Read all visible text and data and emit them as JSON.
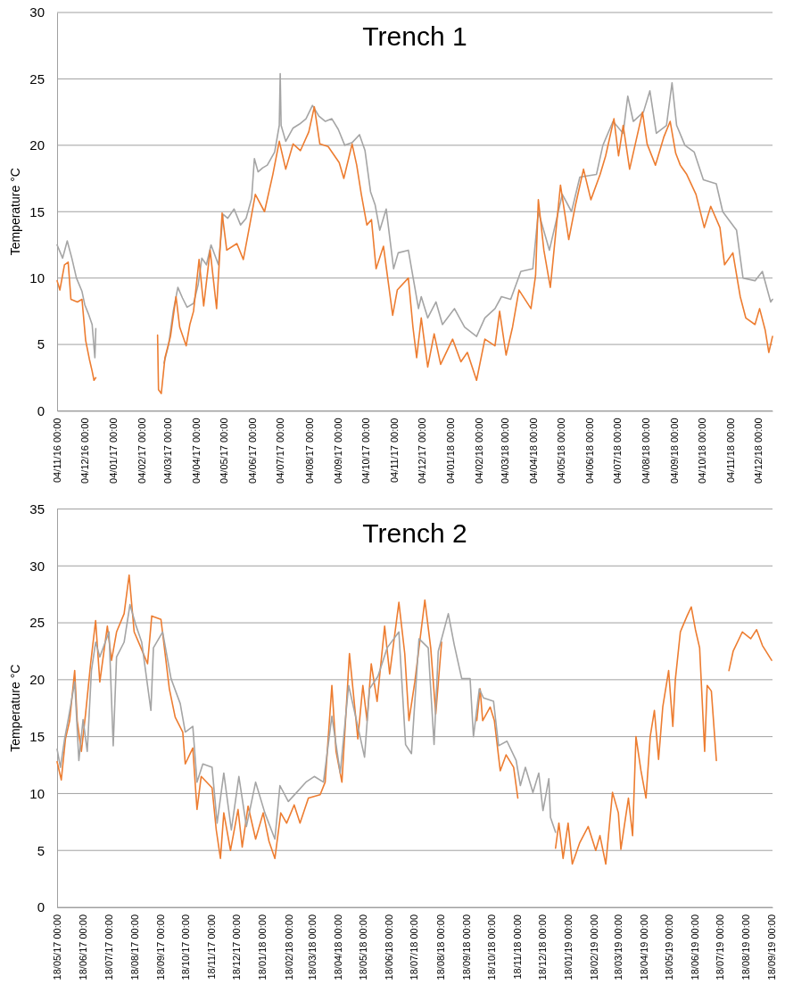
{
  "chart_data": [
    {
      "type": "line",
      "title": "Trench 1",
      "ylabel": "Temperature °C",
      "grid": "y",
      "xlim": [
        "2016-11-04",
        "2018-12-20"
      ],
      "ylim": [
        0,
        30
      ],
      "yticks": [
        0,
        5,
        10,
        15,
        20,
        25,
        30
      ],
      "xticks": [
        {
          "value": "2016-11-04",
          "label": "04/11/16 00:00"
        },
        {
          "value": "2016-12-04",
          "label": "04/12/16 00:00"
        },
        {
          "value": "2017-01-04",
          "label": "04/01/17 00:00"
        },
        {
          "value": "2017-02-04",
          "label": "04/02/17 00:00"
        },
        {
          "value": "2017-03-04",
          "label": "04/03/17 00:00"
        },
        {
          "value": "2017-04-04",
          "label": "04/04/17 00:00"
        },
        {
          "value": "2017-05-04",
          "label": "04/05/17 00:00"
        },
        {
          "value": "2017-06-04",
          "label": "04/06/17 00:00"
        },
        {
          "value": "2017-07-04",
          "label": "04/07/17 00:00"
        },
        {
          "value": "2017-08-04",
          "label": "04/08/17 00:00"
        },
        {
          "value": "2017-09-04",
          "label": "04/09/17 00:00"
        },
        {
          "value": "2017-10-04",
          "label": "04/10/17 00:00"
        },
        {
          "value": "2017-11-04",
          "label": "04/11/17 00:00"
        },
        {
          "value": "2017-12-04",
          "label": "04/12/17 00:00"
        },
        {
          "value": "2018-01-04",
          "label": "04/01/18 00:00"
        },
        {
          "value": "2018-02-04",
          "label": "04/02/18 00:00"
        },
        {
          "value": "2018-03-04",
          "label": "04/03/18 00:00"
        },
        {
          "value": "2018-04-04",
          "label": "04/04/18 00:00"
        },
        {
          "value": "2018-05-04",
          "label": "04/05/18 00:00"
        },
        {
          "value": "2018-06-04",
          "label": "04/06/18 00:00"
        },
        {
          "value": "2018-07-04",
          "label": "04/07/18 00:00"
        },
        {
          "value": "2018-08-04",
          "label": "04/08/18 00:00"
        },
        {
          "value": "2018-09-04",
          "label": "04/09/18 00:00"
        },
        {
          "value": "2018-10-04",
          "label": "04/10/18 00:00"
        },
        {
          "value": "2018-11-04",
          "label": "04/11/18 00:00"
        },
        {
          "value": "2018-12-04",
          "label": "04/12/18 00:00"
        }
      ],
      "series": [
        {
          "color": "#a5a5a5",
          "x": [
            "2016-11-04",
            "2016-11-10",
            "2016-11-15",
            "2016-11-20",
            "2016-11-25",
            "2016-12-01",
            "2016-12-04",
            "2016-12-08",
            "2016-12-12",
            "2016-12-15",
            "2016-12-16",
            "2017-01-20",
            "2017-02-28",
            "2017-03-05",
            "2017-03-10",
            "2017-03-15",
            "2017-03-20",
            "2017-03-25",
            "2017-04-01",
            "2017-04-06",
            "2017-04-10",
            "2017-04-15",
            "2017-04-20",
            "2017-04-28",
            "2017-05-03",
            "2017-05-08",
            "2017-05-15",
            "2017-05-22",
            "2017-05-28",
            "2017-06-03",
            "2017-06-06",
            "2017-06-10",
            "2017-06-15",
            "2017-06-20",
            "2017-06-28",
            "2017-07-03",
            "2017-07-04",
            "2017-07-05",
            "2017-07-10",
            "2017-07-18",
            "2017-07-25",
            "2017-08-01",
            "2017-08-08",
            "2017-08-15",
            "2017-08-22",
            "2017-08-29",
            "2017-09-05",
            "2017-09-12",
            "2017-09-20",
            "2017-09-28",
            "2017-10-04",
            "2017-10-10",
            "2017-10-15",
            "2017-10-20",
            "2017-10-27",
            "2017-11-04",
            "2017-11-09",
            "2017-11-20",
            "2017-12-01",
            "2017-12-04",
            "2017-12-11",
            "2017-12-20",
            "2017-12-27",
            "2018-01-09",
            "2018-01-20",
            "2018-02-02",
            "2018-02-11",
            "2018-02-22",
            "2018-03-01",
            "2018-03-11",
            "2018-03-22",
            "2018-04-04",
            "2018-04-10",
            "2018-04-22",
            "2018-05-06",
            "2018-05-16",
            "2018-05-25",
            "2018-06-12",
            "2018-06-19",
            "2018-06-30",
            "2018-07-11",
            "2018-07-16",
            "2018-07-22",
            "2018-08-02",
            "2018-08-09",
            "2018-08-16",
            "2018-08-27",
            "2018-09-02",
            "2018-09-07",
            "2018-09-16",
            "2018-09-26",
            "2018-10-06",
            "2018-10-20",
            "2018-10-27",
            "2018-11-11",
            "2018-11-18",
            "2018-12-01",
            "2018-12-09",
            "2018-12-18",
            "2018-12-20"
          ],
          "values": [
            12.5,
            11.5,
            12.8,
            11.5,
            10,
            9,
            8,
            7.3,
            6.5,
            4,
            6.2,
            null,
            3.6,
            5,
            7.5,
            9.3,
            8.5,
            7.8,
            8.1,
            9.5,
            11.5,
            11,
            12.5,
            11,
            14.8,
            14.5,
            15.2,
            14,
            14.5,
            16,
            19,
            18,
            18.3,
            18.5,
            19.5,
            21.5,
            25.4,
            21.5,
            20.3,
            21.3,
            21.6,
            22,
            23,
            22.2,
            21.8,
            22,
            21.2,
            20,
            20.2,
            20.8,
            19.6,
            16.5,
            15.5,
            13.6,
            15.2,
            10.7,
            11.9,
            12.1,
            7.7,
            8.6,
            7,
            8.2,
            6.5,
            7.7,
            6.3,
            5.6,
            7,
            7.7,
            8.6,
            8.4,
            10.5,
            10.7,
            15,
            12.1,
            16.3,
            15,
            17.6,
            17.8,
            20,
            21.8,
            20.9,
            23.7,
            21.8,
            22.5,
            24.1,
            20.9,
            21.5,
            24.7,
            21.5,
            20,
            19.5,
            17.4,
            17.1,
            15,
            13.6,
            10,
            9.8,
            10.5,
            8.2,
            8.4
          ]
        },
        {
          "color": "#ed7d31",
          "x": [
            "2016-11-04",
            "2016-11-07",
            "2016-11-12",
            "2016-11-16",
            "2016-11-19",
            "2016-11-26",
            "2016-12-01",
            "2016-12-05",
            "2016-12-09",
            "2016-12-12",
            "2016-12-14",
            "2016-12-16",
            "2017-01-20",
            "2017-02-21",
            "2017-02-22",
            "2017-02-25",
            "2017-03-01",
            "2017-03-07",
            "2017-03-13",
            "2017-03-17",
            "2017-03-24",
            "2017-03-28",
            "2017-04-01",
            "2017-04-07",
            "2017-04-12",
            "2017-04-19",
            "2017-04-26",
            "2017-05-02",
            "2017-05-07",
            "2017-05-18",
            "2017-05-25",
            "2017-06-01",
            "2017-06-07",
            "2017-06-17",
            "2017-06-26",
            "2017-07-03",
            "2017-07-10",
            "2017-07-18",
            "2017-07-26",
            "2017-08-04",
            "2017-08-10",
            "2017-08-16",
            "2017-08-25",
            "2017-09-06",
            "2017-09-11",
            "2017-09-20",
            "2017-09-25",
            "2017-09-30",
            "2017-10-06",
            "2017-10-11",
            "2017-10-16",
            "2017-10-24",
            "2017-11-03",
            "2017-11-08",
            "2017-11-20",
            "2017-11-25",
            "2017-11-29",
            "2017-12-04",
            "2017-12-11",
            "2017-12-18",
            "2017-12-25",
            "2018-01-07",
            "2018-01-16",
            "2018-01-23",
            "2018-02-02",
            "2018-02-11",
            "2018-02-22",
            "2018-02-27",
            "2018-03-06",
            "2018-03-13",
            "2018-03-20",
            "2018-04-02",
            "2018-04-07",
            "2018-04-10",
            "2018-04-16",
            "2018-04-23",
            "2018-05-04",
            "2018-05-13",
            "2018-05-20",
            "2018-05-29",
            "2018-06-06",
            "2018-06-16",
            "2018-06-22",
            "2018-07-01",
            "2018-07-06",
            "2018-07-11",
            "2018-07-18",
            "2018-08-01",
            "2018-08-06",
            "2018-08-15",
            "2018-08-24",
            "2018-08-31",
            "2018-09-06",
            "2018-09-11",
            "2018-09-18",
            "2018-09-28",
            "2018-10-07",
            "2018-10-14",
            "2018-10-24",
            "2018-10-29",
            "2018-11-07",
            "2018-11-15",
            "2018-11-21",
            "2018-12-01",
            "2018-12-06",
            "2018-12-12",
            "2018-12-16",
            "2018-12-20"
          ],
          "values": [
            9.8,
            9.1,
            11,
            11.2,
            8.4,
            8.2,
            8.4,
            5.3,
            3.9,
            3,
            2.3,
            2.5,
            null,
            5.7,
            1.6,
            1.3,
            4,
            5.6,
            8.6,
            6.3,
            4.9,
            6.5,
            7.5,
            11.4,
            7.9,
            12.1,
            7.7,
            14.9,
            12.1,
            12.6,
            11.4,
            14,
            16.3,
            15,
            17.8,
            20.3,
            18.2,
            20.1,
            19.6,
            21,
            22.9,
            20.1,
            19.9,
            18.7,
            17.5,
            20.1,
            18.5,
            16.3,
            14,
            14.4,
            10.7,
            12.4,
            7.2,
            9.1,
            10,
            6.3,
            4,
            7,
            3.3,
            5.8,
            3.5,
            5.4,
            3.7,
            4.4,
            2.3,
            5.4,
            4.9,
            7.5,
            4.2,
            6.3,
            9.1,
            7.7,
            10.2,
            15.9,
            12.1,
            9.3,
            17,
            12.9,
            15.4,
            18.2,
            15.9,
            17.8,
            19.2,
            22,
            19.2,
            21.5,
            18.2,
            22.5,
            20.1,
            18.5,
            20.6,
            21.8,
            19.4,
            18.5,
            17.8,
            16.3,
            13.8,
            15.4,
            13.8,
            11,
            11.9,
            8.6,
            7,
            6.5,
            7.7,
            6.1,
            4.4,
            5.6
          ]
        }
      ]
    },
    {
      "type": "line",
      "title": "Trench 2",
      "ylabel": "Temperature °C",
      "grid": "y",
      "xlim": [
        "2017-05-18",
        "2019-09-19"
      ],
      "ylim": [
        0,
        35
      ],
      "yticks": [
        0,
        5,
        10,
        15,
        20,
        25,
        30,
        35
      ],
      "xticks": [
        {
          "value": "2017-05-18",
          "label": "18/05/17 00:00"
        },
        {
          "value": "2017-06-18",
          "label": "18/06/17 00:00"
        },
        {
          "value": "2017-07-18",
          "label": "18/07/17 00:00"
        },
        {
          "value": "2017-08-18",
          "label": "18/08/17 00:00"
        },
        {
          "value": "2017-09-18",
          "label": "18/09/17 00:00"
        },
        {
          "value": "2017-10-18",
          "label": "18/10/17 00:00"
        },
        {
          "value": "2017-11-18",
          "label": "18/11/17 00:00"
        },
        {
          "value": "2017-12-18",
          "label": "18/12/17 00:00"
        },
        {
          "value": "2018-01-18",
          "label": "18/01/18 00:00"
        },
        {
          "value": "2018-02-18",
          "label": "18/02/18 00:00"
        },
        {
          "value": "2018-03-18",
          "label": "18/03/18 00:00"
        },
        {
          "value": "2018-04-18",
          "label": "18/04/18 00:00"
        },
        {
          "value": "2018-05-18",
          "label": "18/05/18 00:00"
        },
        {
          "value": "2018-06-18",
          "label": "18/06/18 00:00"
        },
        {
          "value": "2018-07-18",
          "label": "18/07/18 00:00"
        },
        {
          "value": "2018-08-18",
          "label": "18/08/18 00:00"
        },
        {
          "value": "2018-09-18",
          "label": "18/09/18 00:00"
        },
        {
          "value": "2018-10-18",
          "label": "18/10/18 00:00"
        },
        {
          "value": "2018-11-18",
          "label": "18/11/18 00:00"
        },
        {
          "value": "2018-12-18",
          "label": "18/12/18 00:00"
        },
        {
          "value": "2019-01-18",
          "label": "18/01/19 00:00"
        },
        {
          "value": "2019-02-18",
          "label": "18/02/19 00:00"
        },
        {
          "value": "2019-03-18",
          "label": "18/03/19 00:00"
        },
        {
          "value": "2019-04-18",
          "label": "18/04/19 00:00"
        },
        {
          "value": "2019-05-18",
          "label": "18/05/19 00:00"
        },
        {
          "value": "2019-06-18",
          "label": "18/06/19 00:00"
        },
        {
          "value": "2019-07-18",
          "label": "18/07/19 00:00"
        },
        {
          "value": "2019-08-18",
          "label": "18/08/19 00:00"
        },
        {
          "value": "2019-09-18",
          "label": "18/09/19 00:00"
        }
      ],
      "series": [
        {
          "color": "#ed7d31",
          "x": [
            "2017-05-18",
            "2017-05-23",
            "2017-05-28",
            "2017-06-02",
            "2017-06-08",
            "2017-06-11",
            "2017-06-16",
            "2017-06-21",
            "2017-06-27",
            "2017-07-03",
            "2017-07-08",
            "2017-07-17",
            "2017-07-22",
            "2017-07-28",
            "2017-08-06",
            "2017-08-12",
            "2017-08-18",
            "2017-08-25",
            "2017-09-03",
            "2017-09-08",
            "2017-09-19",
            "2017-09-29",
            "2017-10-06",
            "2017-10-15",
            "2017-10-18",
            "2017-10-27",
            "2017-11-01",
            "2017-11-06",
            "2017-11-19",
            "2017-11-24",
            "2017-11-29",
            "2017-12-03",
            "2017-12-11",
            "2017-12-20",
            "2017-12-25",
            "2018-01-01",
            "2018-01-10",
            "2018-01-19",
            "2018-01-26",
            "2018-02-02",
            "2018-02-09",
            "2018-02-16",
            "2018-02-25",
            "2018-03-04",
            "2018-03-14",
            "2018-03-28",
            "2018-04-03",
            "2018-04-11",
            "2018-04-16",
            "2018-04-23",
            "2018-05-02",
            "2018-05-12",
            "2018-05-18",
            "2018-05-23",
            "2018-05-28",
            "2018-06-04",
            "2018-06-13",
            "2018-06-19",
            "2018-06-30",
            "2018-07-07",
            "2018-07-12",
            "2018-07-19",
            "2018-07-31",
            "2018-08-07",
            "2018-08-13",
            "2018-08-20",
            "2018-09-10",
            "2018-10-01",
            "2018-10-05",
            "2018-10-08",
            "2018-10-17",
            "2018-10-22",
            "2018-10-29",
            "2018-11-05",
            "2018-11-14",
            "2018-11-19",
            "2018-12-10",
            "2019-01-03",
            "2019-01-07",
            "2019-01-12",
            "2019-01-18",
            "2019-01-23",
            "2019-02-01",
            "2019-02-11",
            "2019-02-20",
            "2019-02-25",
            "2019-03-04",
            "2019-03-12",
            "2019-03-19",
            "2019-03-22",
            "2019-03-31",
            "2019-04-05",
            "2019-04-09",
            "2019-04-15",
            "2019-04-21",
            "2019-04-26",
            "2019-05-01",
            "2019-05-06",
            "2019-05-11",
            "2019-05-18",
            "2019-05-23",
            "2019-05-26",
            "2019-06-01",
            "2019-06-09",
            "2019-06-14",
            "2019-06-19",
            "2019-06-24",
            "2019-06-30",
            "2019-07-03",
            "2019-07-08",
            "2019-07-14",
            "2019-07-20",
            "2019-07-29",
            "2019-08-03",
            "2019-08-14",
            "2019-08-24",
            "2019-08-31",
            "2019-09-07",
            "2019-09-18"
          ],
          "values": [
            12.8,
            11.2,
            14.8,
            16.4,
            20.8,
            16.4,
            13.7,
            17,
            21.4,
            25.2,
            19.8,
            24.7,
            21.7,
            24.2,
            25.8,
            29.2,
            24.2,
            23,
            21.4,
            25.6,
            25.3,
            19.2,
            16.7,
            15.4,
            12.6,
            14,
            8.6,
            11.5,
            10.5,
            6.8,
            4.3,
            8.3,
            5,
            8.6,
            5.3,
            8.9,
            6,
            8.3,
            5.8,
            4.3,
            8.3,
            7.4,
            9,
            7.4,
            9.6,
            9.9,
            11,
            19.5,
            13.7,
            11,
            22.3,
            14.8,
            19.5,
            16.4,
            21.4,
            18.1,
            24.7,
            20.5,
            26.8,
            22.3,
            16.4,
            19.8,
            27,
            22.8,
            17,
            23.3,
            null,
            16.4,
            19.2,
            16.4,
            17.6,
            16.4,
            12,
            13.4,
            12.3,
            9.6,
            null,
            5.2,
            7.4,
            4.3,
            7.4,
            3.8,
            5.7,
            7.1,
            5,
            6.3,
            3.8,
            10.1,
            8.3,
            5.1,
            9.6,
            6.3,
            15,
            12,
            9.6,
            15,
            17.3,
            13,
            17.6,
            20.8,
            15.9,
            20,
            24.2,
            25.6,
            26.4,
            24.4,
            22.8,
            13.7,
            19.5,
            19,
            12.9,
            null,
            20.8,
            22.5,
            24.2,
            23.6,
            24.4,
            23,
            21.7
          ]
        },
        {
          "color": "#a5a5a5",
          "x": [
            "2017-05-18",
            "2017-05-22",
            "2017-05-27",
            "2017-06-01",
            "2017-06-08",
            "2017-06-13",
            "2017-06-18",
            "2017-06-23",
            "2017-06-28",
            "2017-07-03",
            "2017-07-08",
            "2017-07-19",
            "2017-07-24",
            "2017-07-28",
            "2017-08-06",
            "2017-08-13",
            "2017-08-20",
            "2017-08-27",
            "2017-09-07",
            "2017-09-10",
            "2017-09-21",
            "2017-10-01",
            "2017-10-12",
            "2017-10-18",
            "2017-10-27",
            "2017-11-01",
            "2017-11-08",
            "2017-11-19",
            "2017-11-25",
            "2017-12-03",
            "2017-12-12",
            "2017-12-21",
            "2017-12-30",
            "2018-01-10",
            "2018-01-21",
            "2018-02-02",
            "2018-02-08",
            "2018-02-18",
            "2018-02-28",
            "2018-03-11",
            "2018-03-21",
            "2018-04-01",
            "2018-04-11",
            "2018-04-21",
            "2018-05-01",
            "2018-05-12",
            "2018-05-20",
            "2018-05-26",
            "2018-06-05",
            "2018-06-16",
            "2018-06-30",
            "2018-07-08",
            "2018-07-15",
            "2018-07-24",
            "2018-08-04",
            "2018-08-11",
            "2018-08-16",
            "2018-08-28",
            "2018-09-04",
            "2018-09-13",
            "2018-09-23",
            "2018-09-27",
            "2018-10-04",
            "2018-10-09",
            "2018-10-21",
            "2018-10-27",
            "2018-11-06",
            "2018-11-17",
            "2018-11-22",
            "2018-11-28",
            "2018-12-07",
            "2018-12-14",
            "2018-12-19",
            "2018-12-26",
            "2018-12-28",
            "2019-01-03"
          ],
          "values": [
            13.9,
            12.3,
            14.8,
            16.8,
            19.8,
            12.9,
            16.5,
            13.7,
            20.8,
            23.3,
            22,
            24.2,
            14.2,
            22,
            23.3,
            26.6,
            24.8,
            23.3,
            17.3,
            22.8,
            24.2,
            20.1,
            17.9,
            15.4,
            15.9,
            11,
            12.6,
            12.3,
            7.4,
            11.8,
            6.8,
            11.5,
            7.1,
            11,
            8.3,
            6,
            10.7,
            9.3,
            10.1,
            11,
            11.5,
            11,
            16.8,
            11.8,
            19.5,
            15.9,
            13.2,
            19.2,
            20.3,
            22.8,
            24.2,
            14.3,
            13.5,
            23.6,
            22.8,
            14.3,
            22.5,
            25.8,
            23.1,
            20.1,
            20.1,
            15,
            19.2,
            18.4,
            18.1,
            14.2,
            14.6,
            12.9,
            10.7,
            12.3,
            10.1,
            11.8,
            8.5,
            11.3,
            7.9,
            6.6
          ]
        }
      ]
    }
  ]
}
